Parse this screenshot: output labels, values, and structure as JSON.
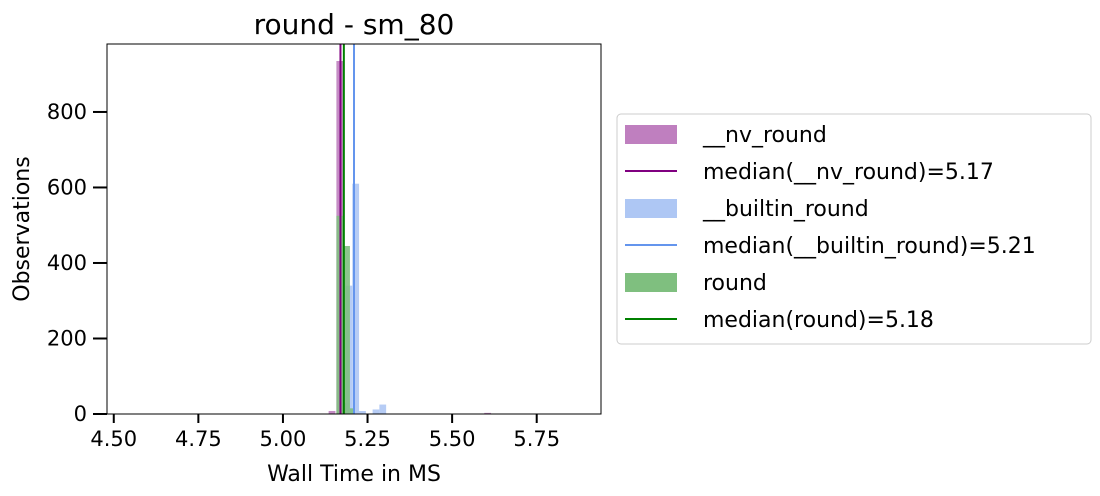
{
  "chart_data": {
    "type": "histogram",
    "title": "round - sm_80",
    "xlabel": "Wall Time in MS",
    "ylabel": "Observations",
    "xlim": [
      4.48,
      5.94
    ],
    "ylim": [
      0,
      980
    ],
    "x_ticks": [
      4.5,
      4.75,
      5.0,
      5.25,
      5.5,
      5.75
    ],
    "x_tick_labels": [
      "4.50",
      "4.75",
      "5.00",
      "5.25",
      "5.50",
      "5.75"
    ],
    "y_ticks": [
      0,
      200,
      400,
      600,
      800
    ],
    "y_tick_labels": [
      "0",
      "200",
      "400",
      "600",
      "800"
    ],
    "grid": false,
    "legend_position": "outside-right",
    "series": [
      {
        "name": "__nv_round",
        "color": "#bf7fbf",
        "bins": [
          {
            "x0": 5.135,
            "x1": 5.155,
            "count": 8
          },
          {
            "x0": 5.158,
            "x1": 5.178,
            "count": 935
          },
          {
            "x0": 5.178,
            "x1": 5.198,
            "count": 30
          },
          {
            "x0": 5.595,
            "x1": 5.615,
            "count": 3
          }
        ]
      },
      {
        "name": "__builtin_round",
        "color": "#aec7f4",
        "bins": [
          {
            "x0": 5.185,
            "x1": 5.205,
            "count": 340
          },
          {
            "x0": 5.205,
            "x1": 5.225,
            "count": 610
          },
          {
            "x0": 5.225,
            "x1": 5.245,
            "count": 8
          },
          {
            "x0": 5.265,
            "x1": 5.285,
            "count": 12
          },
          {
            "x0": 5.285,
            "x1": 5.305,
            "count": 25
          }
        ]
      },
      {
        "name": "round",
        "color": "#7fbf7f",
        "bins": [
          {
            "x0": 5.158,
            "x1": 5.178,
            "count": 525
          },
          {
            "x0": 5.178,
            "x1": 5.198,
            "count": 445
          },
          {
            "x0": 5.198,
            "x1": 5.208,
            "count": 15
          }
        ]
      }
    ],
    "medians": [
      {
        "name": "median(__nv_round)=5.17",
        "value": 5.17,
        "color": "#800080"
      },
      {
        "name": "median(__builtin_round)=5.21",
        "value": 5.21,
        "color": "#6495ed"
      },
      {
        "name": "median(round)=5.18",
        "value": 5.18,
        "color": "#008000"
      }
    ],
    "legend": [
      {
        "label": "__nv_round",
        "kind": "patch",
        "color": "#bf7fbf"
      },
      {
        "label": "median(__nv_round)=5.17",
        "kind": "line",
        "color": "#800080"
      },
      {
        "label": "__builtin_round",
        "kind": "patch",
        "color": "#aec7f4"
      },
      {
        "label": "median(__builtin_round)=5.21",
        "kind": "line",
        "color": "#6495ed"
      },
      {
        "label": "round",
        "kind": "patch",
        "color": "#7fbf7f"
      },
      {
        "label": "median(round)=5.18",
        "kind": "line",
        "color": "#008000"
      }
    ]
  }
}
